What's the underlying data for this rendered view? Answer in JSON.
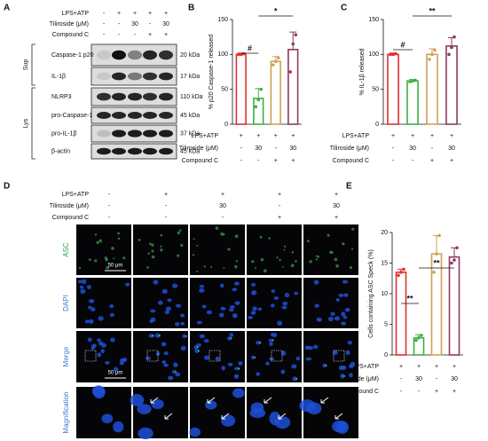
{
  "panel_labels": [
    "A",
    "B",
    "C",
    "D",
    "E"
  ],
  "blot": {
    "conditions": [
      {
        "label": "LPS+ATP",
        "values": [
          "-",
          "+",
          "+",
          "+",
          "+"
        ]
      },
      {
        "label": "Tiliroside (μM)",
        "values": [
          "-",
          "-",
          "30",
          "-",
          "30"
        ]
      },
      {
        "label": "Compound C",
        "values": [
          "-",
          "-",
          "-",
          "+",
          "+"
        ]
      }
    ],
    "groups": [
      "Sup",
      "Lys"
    ],
    "rows": [
      {
        "label": "Caspase-1 p20",
        "size": "20 kDa"
      },
      {
        "label": "IL-1β",
        "size": "17 kDa"
      },
      {
        "label": "NLRP3",
        "size": "110 kDa"
      },
      {
        "label": "pro-Caspase-1",
        "size": "45 kDa"
      },
      {
        "label": "pro-IL-1β",
        "size": "37 kDa"
      },
      {
        "label": "β-actin",
        "size": "45 kDa"
      }
    ]
  },
  "chart_data": [
    {
      "type": "bar",
      "ylabel": "% p20 Caspase-1 released",
      "ylim": [
        0,
        150
      ],
      "yticks": [
        0,
        50,
        100,
        150
      ],
      "colors": [
        "#e0302e",
        "#3cb043",
        "#d1a154",
        "#8e3a5e"
      ],
      "values": [
        100,
        37,
        90,
        107
      ],
      "errors": [
        2,
        14,
        7,
        25
      ],
      "points": [
        [
          100,
          100,
          101
        ],
        [
          25,
          35,
          50
        ],
        [
          85,
          90,
          95
        ],
        [
          75,
          115,
          128
        ]
      ],
      "conditions": [
        {
          "label": "LPS+ATP",
          "values": [
            "+",
            "+",
            "+",
            "+"
          ]
        },
        {
          "label": "Tiliroside (μM)",
          "values": [
            "-",
            "30",
            "-",
            "30"
          ]
        },
        {
          "label": "Compound C",
          "values": [
            "-",
            "-",
            "+",
            "+"
          ]
        }
      ],
      "annotations": [
        "#",
        "*"
      ]
    },
    {
      "type": "bar",
      "ylabel": "% IL-1β released",
      "ylim": [
        0,
        150
      ],
      "yticks": [
        0,
        50,
        100,
        150
      ],
      "colors": [
        "#e0302e",
        "#3cb043",
        "#d1a154",
        "#8e3a5e"
      ],
      "values": [
        100,
        62,
        100,
        112
      ],
      "errors": [
        2,
        2,
        8,
        12
      ],
      "points": [
        [
          100,
          100,
          101
        ],
        [
          61,
          62,
          63
        ],
        [
          93,
          100,
          106
        ],
        [
          100,
          110,
          125
        ]
      ],
      "conditions": [
        {
          "label": "LPS+ATP",
          "values": [
            "+",
            "+",
            "+",
            "+"
          ]
        },
        {
          "label": "Tiliroside (μM)",
          "values": [
            "-",
            "30",
            "-",
            "30"
          ]
        },
        {
          "label": "Compound C",
          "values": [
            "-",
            "-",
            "+",
            "+"
          ]
        }
      ],
      "annotations": [
        "#",
        "**"
      ]
    },
    {
      "type": "bar",
      "ylabel": "Cells containing ASC Speck (%)",
      "ylim": [
        0,
        20
      ],
      "yticks": [
        0,
        5,
        10,
        15,
        20
      ],
      "colors": [
        "#e0302e",
        "#3cb043",
        "#d1a154",
        "#8e3a5e"
      ],
      "values": [
        13.5,
        2.8,
        16.5,
        16
      ],
      "errors": [
        0.5,
        0.5,
        3,
        1.5
      ],
      "points": [
        [
          13,
          13.5,
          14
        ],
        [
          2.4,
          2.8,
          3.2
        ],
        [
          13.5,
          16.5,
          19.5
        ],
        [
          15,
          15.5,
          17.5
        ]
      ],
      "conditions": [
        {
          "label": "LPS+ATP",
          "values": [
            "+",
            "+",
            "+",
            "+"
          ]
        },
        {
          "label": "Tiliroside (μM)",
          "values": [
            "-",
            "30",
            "-",
            "30"
          ]
        },
        {
          "label": "Compound C",
          "values": [
            "-",
            "-",
            "+",
            "+"
          ]
        }
      ],
      "annotations": [
        "**",
        "**"
      ]
    }
  ],
  "microscopy": {
    "conditions": [
      {
        "label": "LPS+ATP",
        "values": [
          "-",
          "+",
          "+",
          "+",
          "+"
        ]
      },
      {
        "label": "Tiliroside (μM)",
        "values": [
          "-",
          "-",
          "30",
          "-",
          "30"
        ]
      },
      {
        "label": "Compound C",
        "values": [
          "-",
          "-",
          "-",
          "+",
          "+"
        ]
      }
    ],
    "rows": [
      "ASC",
      "DAPI",
      "Merge",
      "Magnification"
    ],
    "scale_bar": "50 μm"
  }
}
